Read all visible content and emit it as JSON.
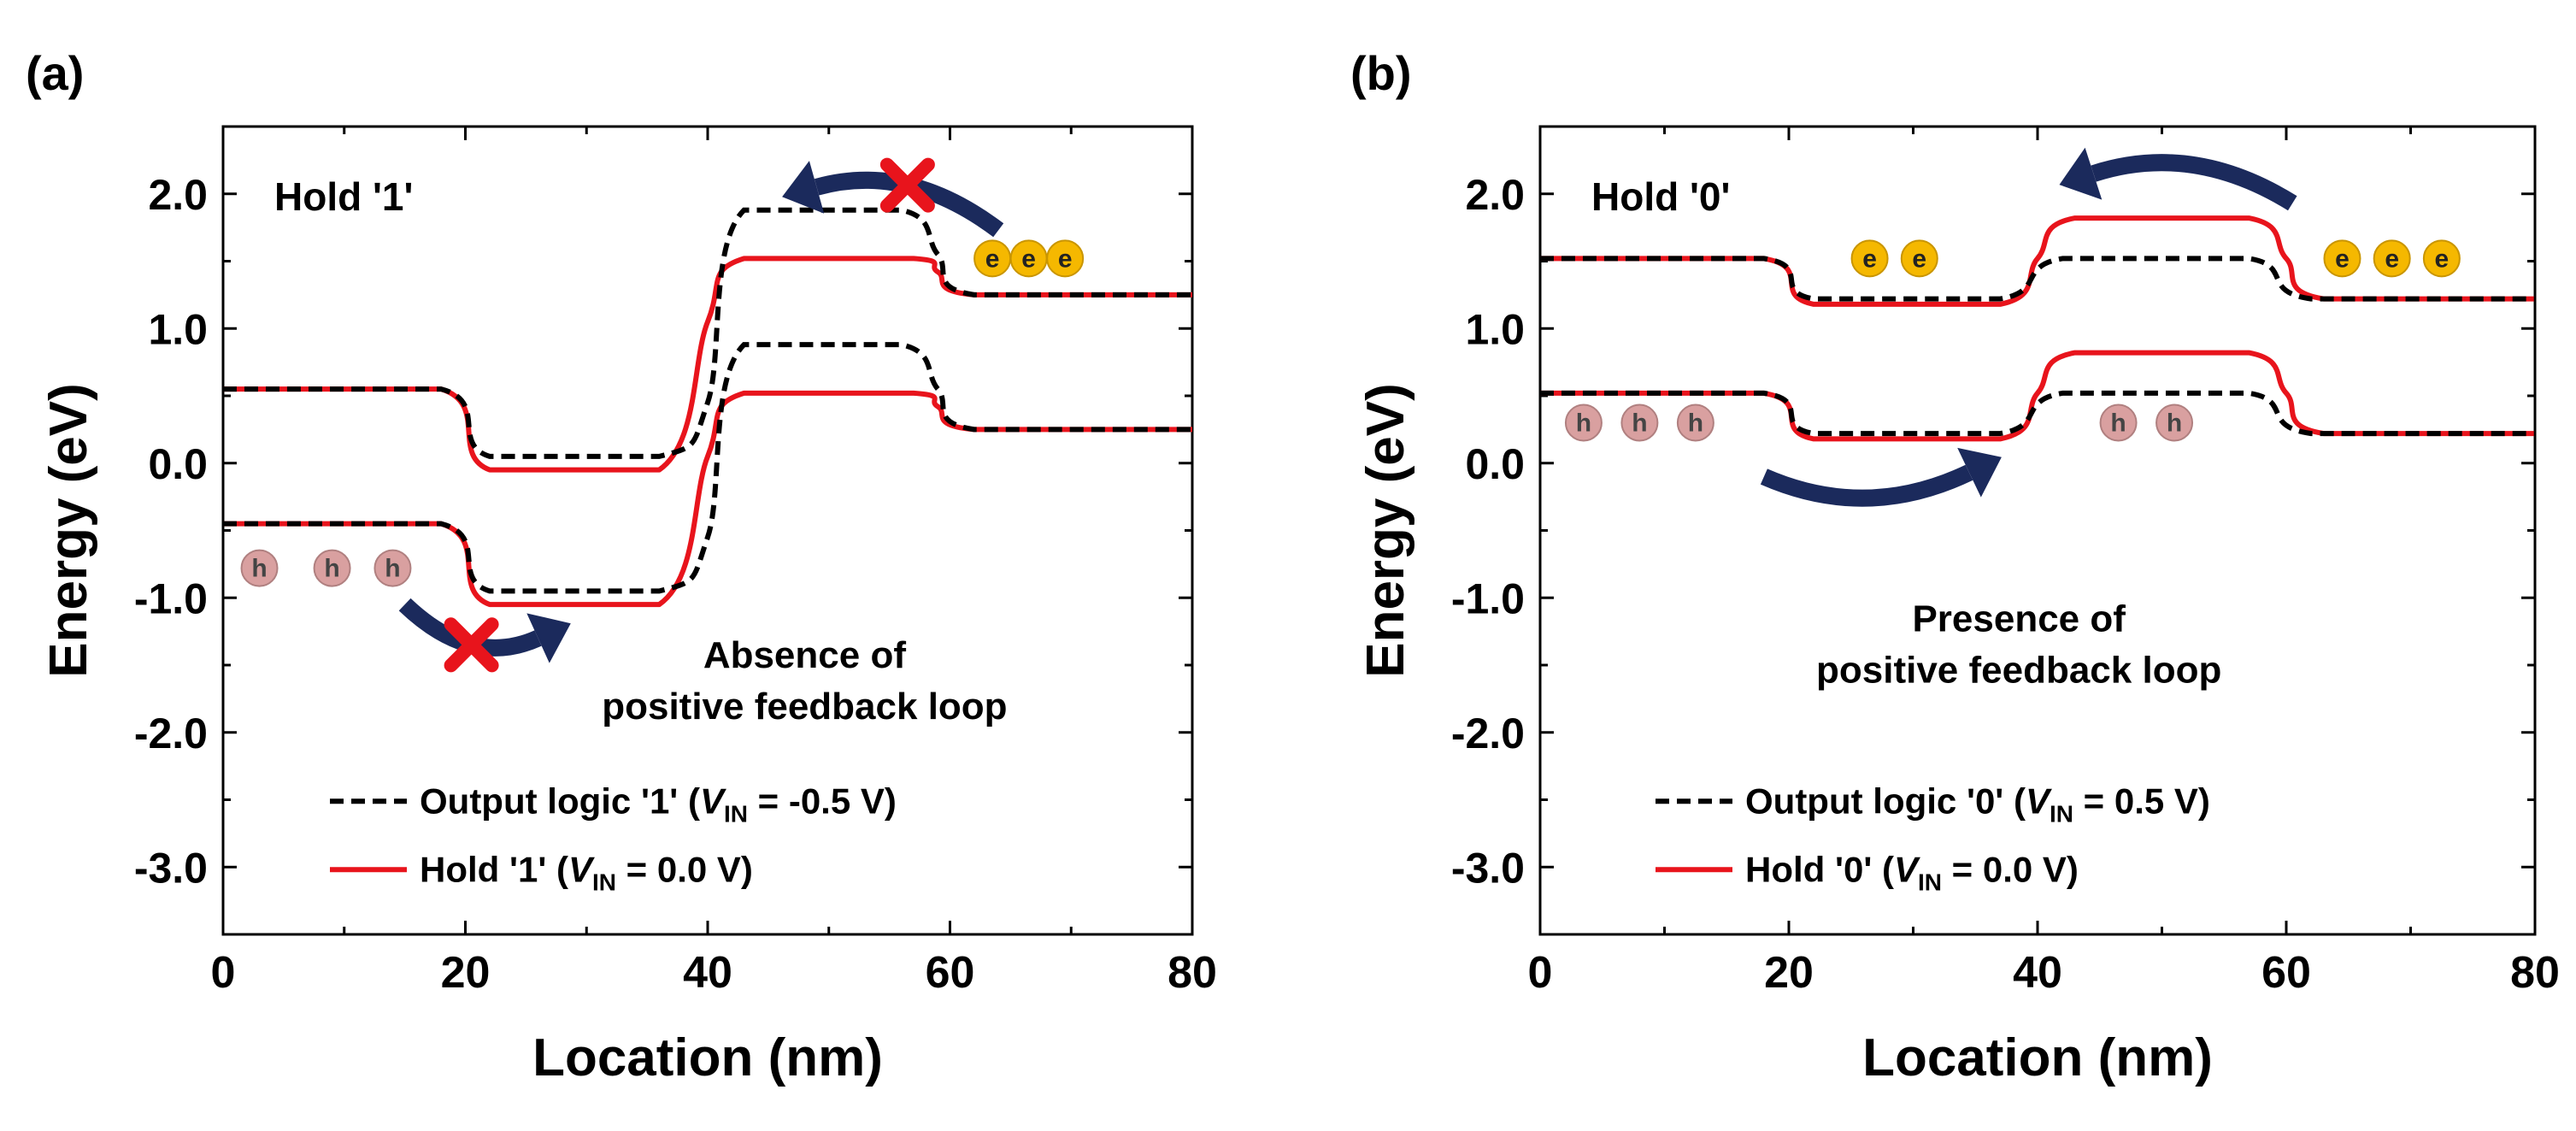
{
  "figure": {
    "colors": {
      "output_line": "#000000",
      "hold_line": "#e8141c",
      "arrow": "#1b2a5c",
      "cross": "#e8141c",
      "electron_fill": "#f5b800",
      "hole_fill": "#d9a0a0"
    }
  },
  "chart_data": [
    {
      "panel_label": "(a)",
      "type": "line",
      "title": "Hold '1'",
      "xlabel": "Location (nm)",
      "ylabel": "Energy (eV)",
      "xlim": [
        0,
        80
      ],
      "ylim": [
        -3.5,
        2.5
      ],
      "xticks": [
        0,
        20,
        40,
        60,
        80
      ],
      "xtick_labels": [
        "0",
        "20",
        "40",
        "60",
        "80"
      ],
      "yticks": [
        2.0,
        1.0,
        0.0,
        -1.0,
        -2.0,
        -3.0
      ],
      "ytick_labels": [
        "2.0",
        "1.0",
        "0.0",
        "-1.0",
        "-2.0",
        "-3.0"
      ],
      "series": [
        {
          "name": "Output logic '1' conduction band",
          "style": "dashed",
          "points": [
            [
              0,
              0.55
            ],
            [
              18,
              0.55
            ],
            [
              22,
              0.05
            ],
            [
              36,
              0.05
            ],
            [
              40,
              0.45
            ],
            [
              43,
              1.88
            ],
            [
              56,
              1.88
            ],
            [
              59,
              1.55
            ],
            [
              62,
              1.25
            ],
            [
              80,
              1.25
            ]
          ]
        },
        {
          "name": "Output logic '1' valence band",
          "style": "dashed",
          "points": [
            [
              0,
              -0.45
            ],
            [
              18,
              -0.45
            ],
            [
              22,
              -0.95
            ],
            [
              36,
              -0.95
            ],
            [
              40,
              -0.55
            ],
            [
              43,
              0.88
            ],
            [
              56,
              0.88
            ],
            [
              59,
              0.55
            ],
            [
              62,
              0.25
            ],
            [
              80,
              0.25
            ]
          ]
        },
        {
          "name": "Hold '1' conduction band",
          "style": "solid",
          "points": [
            [
              0,
              0.55
            ],
            [
              18,
              0.55
            ],
            [
              22,
              -0.05
            ],
            [
              36,
              -0.05
            ],
            [
              40,
              1.05
            ],
            [
              43,
              1.52
            ],
            [
              57,
              1.52
            ],
            [
              59,
              1.42
            ],
            [
              62,
              1.25
            ],
            [
              80,
              1.25
            ]
          ]
        },
        {
          "name": "Hold '1' valence band",
          "style": "solid",
          "points": [
            [
              0,
              -0.45
            ],
            [
              18,
              -0.45
            ],
            [
              22,
              -1.05
            ],
            [
              36,
              -1.05
            ],
            [
              40,
              0.05
            ],
            [
              43,
              0.52
            ],
            [
              57,
              0.52
            ],
            [
              59,
              0.42
            ],
            [
              62,
              0.25
            ],
            [
              80,
              0.25
            ]
          ]
        }
      ],
      "legend": [
        {
          "style": "dashed",
          "prefix": "Output logic '1' (",
          "var": "V",
          "sub": "IN",
          "suffix": " = -0.5 V)"
        },
        {
          "style": "solid",
          "prefix": "Hold '1' (",
          "var": "V",
          "sub": "IN",
          "suffix": " = 0.0 V)"
        }
      ],
      "annotation": [
        "Absence of",
        "positive feedback loop"
      ],
      "electrons": {
        "label": "e",
        "x": [
          63.5,
          66.5,
          69.5
        ],
        "y": 1.52
      },
      "holes": {
        "label": "h",
        "x": [
          3,
          9,
          14
        ],
        "y": -0.78
      },
      "arrows": [
        {
          "from": [
            64,
            1.73
          ],
          "to": [
            49,
            2.05
          ],
          "curve": "down",
          "crossed": true
        },
        {
          "from": [
            15,
            -1.05
          ],
          "to": [
            26,
            -1.3
          ],
          "curve": "up",
          "crossed": true
        }
      ]
    },
    {
      "panel_label": "(b)",
      "type": "line",
      "title": "Hold '0'",
      "xlabel": "Location (nm)",
      "ylabel": "Energy (eV)",
      "xlim": [
        0,
        80
      ],
      "ylim": [
        -3.5,
        2.5
      ],
      "xticks": [
        0,
        20,
        40,
        60,
        80
      ],
      "xtick_labels": [
        "0",
        "20",
        "40",
        "60",
        "80"
      ],
      "yticks": [
        2.0,
        1.0,
        0.0,
        -1.0,
        -2.0,
        -3.0
      ],
      "ytick_labels": [
        "2.0",
        "1.0",
        "0.0",
        "-1.0",
        "-2.0",
        "-3.0"
      ],
      "series": [
        {
          "name": "Output logic '0' conduction band",
          "style": "dashed",
          "points": [
            [
              0,
              1.52
            ],
            [
              18,
              1.52
            ],
            [
              22,
              1.22
            ],
            [
              37,
              1.22
            ],
            [
              42,
              1.52
            ],
            [
              57,
              1.52
            ],
            [
              62,
              1.22
            ],
            [
              80,
              1.22
            ]
          ]
        },
        {
          "name": "Output logic '0' valence band",
          "style": "dashed",
          "points": [
            [
              0,
              0.52
            ],
            [
              18,
              0.52
            ],
            [
              22,
              0.22
            ],
            [
              37,
              0.22
            ],
            [
              42,
              0.52
            ],
            [
              57,
              0.52
            ],
            [
              62,
              0.22
            ],
            [
              80,
              0.22
            ]
          ]
        },
        {
          "name": "Hold '0' conduction band",
          "style": "solid",
          "points": [
            [
              0,
              1.52
            ],
            [
              18,
              1.52
            ],
            [
              22,
              1.18
            ],
            [
              37,
              1.18
            ],
            [
              40,
              1.52
            ],
            [
              43,
              1.82
            ],
            [
              57,
              1.82
            ],
            [
              60,
              1.52
            ],
            [
              63,
              1.22
            ],
            [
              80,
              1.22
            ]
          ]
        },
        {
          "name": "Hold '0' valence band",
          "style": "solid",
          "points": [
            [
              0,
              0.52
            ],
            [
              18,
              0.52
            ],
            [
              22,
              0.18
            ],
            [
              37,
              0.18
            ],
            [
              40,
              0.52
            ],
            [
              43,
              0.82
            ],
            [
              57,
              0.82
            ],
            [
              60,
              0.52
            ],
            [
              63,
              0.22
            ],
            [
              80,
              0.22
            ]
          ]
        }
      ],
      "legend": [
        {
          "style": "dashed",
          "prefix": "Output logic '0' (",
          "var": "V",
          "sub": "IN",
          "suffix": " = 0.5 V)"
        },
        {
          "style": "solid",
          "prefix": "Hold '0' (",
          "var": "V",
          "sub": "IN",
          "suffix": " = 0.0 V)"
        }
      ],
      "annotation": [
        "Presence of",
        "positive feedback loop"
      ],
      "electrons": {
        "label": "e",
        "x": [
          26.5,
          30.5,
          64.5,
          68.5,
          72.5
        ],
        "y": 1.52
      },
      "holes": {
        "label": "h",
        "x": [
          3.5,
          8,
          12.5,
          46.5,
          51
        ],
        "y": 0.3
      },
      "arrows": [
        {
          "from": [
            60.5,
            1.93
          ],
          "to": [
            44.5,
            2.15
          ],
          "curve": "down",
          "crossed": false
        },
        {
          "from": [
            18,
            -0.1
          ],
          "to": [
            34.5,
            -0.07
          ],
          "curve": "up",
          "crossed": false
        }
      ]
    }
  ]
}
